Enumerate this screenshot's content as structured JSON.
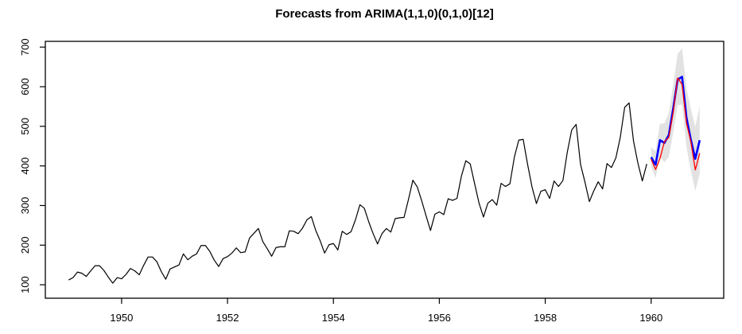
{
  "title": "Forecasts from ARIMA(1,1,0)(0,1,0)[12]",
  "colors": {
    "background": "#ffffff",
    "axis": "#000000",
    "observed": "#000000",
    "forecast": "#0000ff",
    "actual": "#ff0000",
    "interval": "#e2e2e2"
  },
  "chart_data": {
    "type": "line",
    "title": "Forecasts from ARIMA(1,1,0)(0,1,0)[12]",
    "xlabel": "",
    "ylabel": "",
    "frequency": 12,
    "xlim": [
      1948.56,
      1961.37
    ],
    "ylim": [
      66,
      714.5
    ],
    "grid": false,
    "legend": "none",
    "xticks": [
      1950,
      1952,
      1954,
      1956,
      1958,
      1960
    ],
    "yticks": [
      100,
      200,
      300,
      400,
      500,
      600,
      700
    ],
    "series": [
      {
        "name": "observed-monthly-1949-1959",
        "color": "#000000",
        "start": 1949.0,
        "values": [
          112,
          118,
          132,
          129,
          121,
          135,
          148,
          148,
          136,
          119,
          104,
          118,
          115,
          126,
          141,
          135,
          125,
          149,
          170,
          170,
          158,
          133,
          114,
          140,
          145,
          150,
          178,
          163,
          172,
          178,
          199,
          199,
          184,
          162,
          146,
          166,
          171,
          180,
          193,
          181,
          183,
          218,
          230,
          242,
          209,
          191,
          172,
          194,
          196,
          196,
          236,
          235,
          229,
          243,
          264,
          272,
          237,
          211,
          180,
          201,
          204,
          188,
          235,
          227,
          234,
          264,
          302,
          293,
          259,
          229,
          203,
          229,
          242,
          233,
          267,
          269,
          270,
          315,
          364,
          347,
          312,
          274,
          237,
          278,
          284,
          277,
          317,
          313,
          318,
          374,
          413,
          405,
          355,
          306,
          271,
          306,
          315,
          301,
          356,
          348,
          355,
          422,
          465,
          467,
          404,
          347,
          305,
          336,
          340,
          318,
          362,
          348,
          363,
          435,
          491,
          505,
          404,
          359,
          310,
          337,
          360,
          342,
          406,
          396,
          420,
          472,
          548,
          559,
          463,
          407,
          362,
          405
        ]
      },
      {
        "name": "forecast-mean-1960",
        "color": "#0000ff",
        "start": 1960.0,
        "values": [
          422,
          403,
          465,
          458,
          478,
          545,
          618,
          625,
          522,
          466,
          418,
          465
        ]
      },
      {
        "name": "actual-1960",
        "color": "#ff0000",
        "start": 1960.0,
        "values": [
          417,
          391,
          419,
          461,
          472,
          535,
          622,
          606,
          508,
          461,
          390,
          432
        ]
      }
    ],
    "interval": {
      "name": "prediction-interval-1960",
      "color": "#e2e2e2",
      "start": 1960.0,
      "lower": [
        397,
        369,
        423,
        409,
        423,
        485,
        553,
        555,
        448,
        388,
        337,
        380
      ],
      "upper": [
        447,
        437,
        507,
        507,
        533,
        605,
        683,
        697,
        596,
        544,
        499,
        550
      ]
    }
  }
}
